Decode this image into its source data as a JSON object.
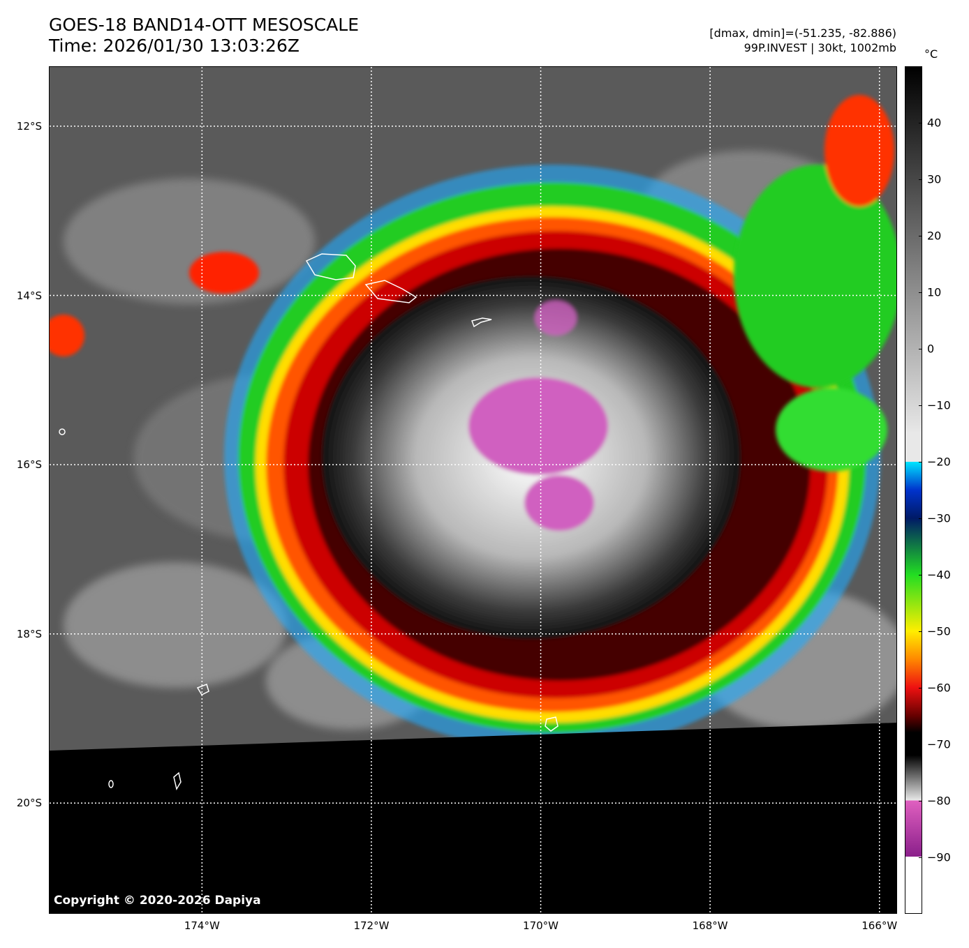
{
  "header": {
    "title_line1": "GOES-18 BAND14-OTT MESOSCALE",
    "title_line2": "Time: 2026/01/30 13:03:26Z",
    "info_line1": "[dmax, dmin]=(-51.235, -82.886)",
    "info_line2": "99P.INVEST | 30kt, 1002mb"
  },
  "map": {
    "lon_range": [
      -175.8,
      -165.8
    ],
    "lat_range": [
      -11.3,
      -21.3
    ],
    "lat_labels": [
      {
        "lat": -12,
        "text": "12°S"
      },
      {
        "lat": -14,
        "text": "14°S"
      },
      {
        "lat": -16,
        "text": "16°S"
      },
      {
        "lat": -18,
        "text": "18°S"
      },
      {
        "lat": -20,
        "text": "20°S"
      }
    ],
    "lon_labels": [
      {
        "lon": -174,
        "text": "174°W"
      },
      {
        "lon": -172,
        "text": "172°W"
      },
      {
        "lon": -170,
        "text": "170°W"
      },
      {
        "lon": -168,
        "text": "168°W"
      },
      {
        "lon": -166,
        "text": "166°W"
      }
    ],
    "gridlines": "dotted white",
    "copyright": "Copyright © 2020-2026 Dapiya"
  },
  "colorbar": {
    "unit": "°C",
    "range": [
      -100,
      50
    ],
    "ticks": [
      "40",
      "30",
      "20",
      "10",
      "0",
      "−10",
      "−20",
      "−30",
      "−40",
      "−50",
      "−60",
      "−70",
      "−80",
      "−90"
    ],
    "tick_values": [
      40,
      30,
      20,
      10,
      0,
      -10,
      -20,
      -30,
      -40,
      -50,
      -60,
      -70,
      -80,
      -90
    ],
    "colors": {
      "warm_top": "#000000",
      "gray_mid": "#9a9a9a",
      "light_gray": "#e8e8e8",
      "cyan": "#00e5ff",
      "blue": "#0033cc",
      "navy": "#001a66",
      "green": "#22dd22",
      "yellow": "#ffee00",
      "orange": "#ff8800",
      "red": "#ee1111",
      "dark_red": "#660000",
      "black": "#000000",
      "magenta": "#e060c0",
      "purple": "#8a1f8a",
      "white": "#ffffff"
    }
  }
}
